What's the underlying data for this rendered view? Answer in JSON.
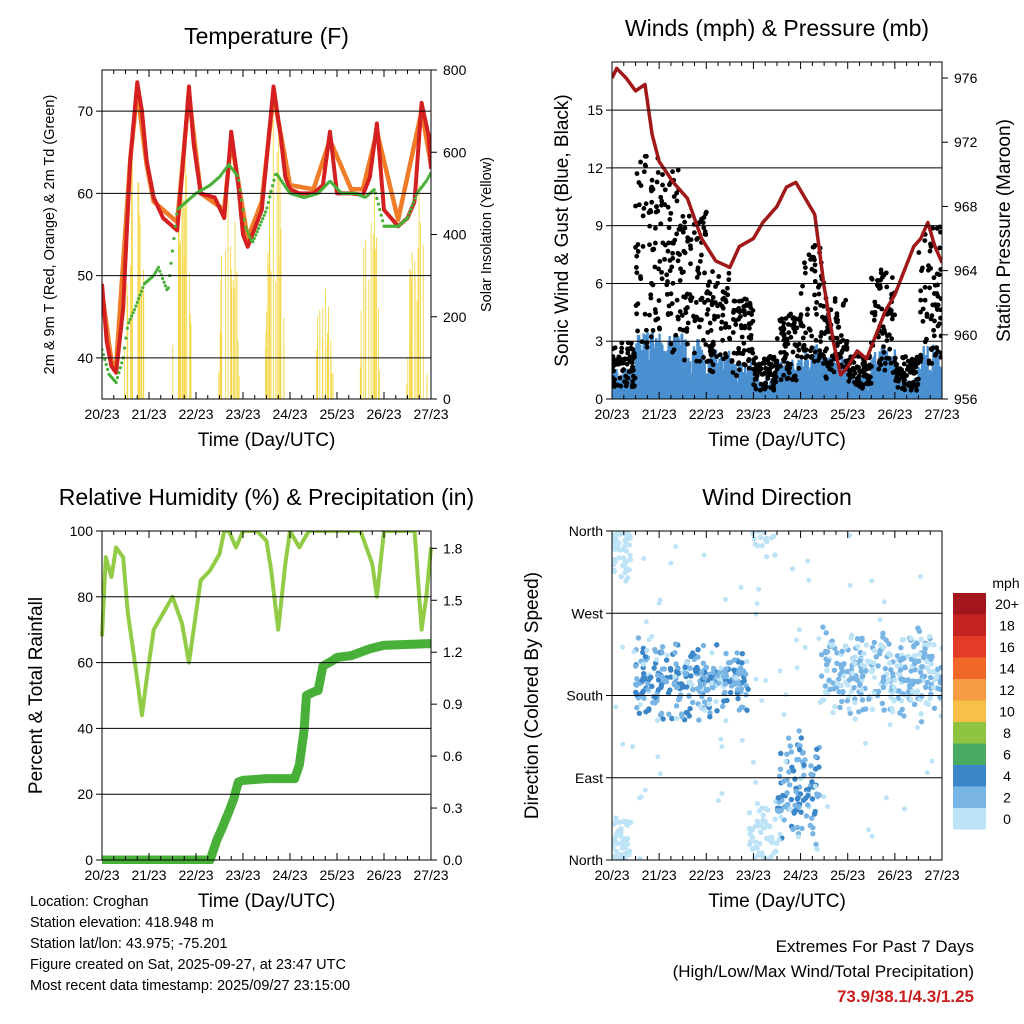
{
  "chart_data": [
    {
      "type": "line",
      "id": "temperature",
      "title": "Temperature (F)",
      "xlabel": "Time (Day/UTC)",
      "ylabel": "2m & 9m T (Red, Orange) & 2m Td (Green)",
      "ylabel_right": "Solar Insolation (Yellow)",
      "x_ticks": [
        "20/23",
        "21/23",
        "22/23",
        "23/23",
        "24/23",
        "25/23",
        "26/23",
        "27/23"
      ],
      "xlim": [
        0,
        7
      ],
      "ylim": [
        35,
        75
      ],
      "y_ticks": [
        40,
        50,
        60,
        70
      ],
      "ylim_right": [
        0,
        800
      ],
      "y_ticks_right": [
        0,
        200,
        400,
        600,
        800
      ],
      "gridlines_y": [
        40,
        50,
        60,
        70
      ],
      "series": [
        {
          "name": "2m T",
          "color": "#d42020",
          "x": [
            0,
            0.1,
            0.2,
            0.3,
            0.45,
            0.6,
            0.75,
            0.85,
            0.95,
            1.1,
            1.3,
            1.6,
            1.7,
            1.85,
            1.95,
            2.1,
            2.4,
            2.6,
            2.75,
            2.9,
            3.0,
            3.1,
            3.4,
            3.65,
            3.8,
            3.9,
            4.0,
            4.2,
            4.5,
            4.7,
            4.85,
            5.0,
            5.3,
            5.55,
            5.7,
            5.85,
            6.0,
            6.3,
            6.5,
            6.65,
            6.8,
            6.95,
            7.0
          ],
          "values": [
            49,
            42,
            39,
            38.2,
            46,
            64,
            73.5,
            70,
            64,
            59.5,
            57,
            55.5,
            62,
            73,
            66,
            60,
            59.5,
            57,
            67.5,
            61,
            55,
            53.5,
            58,
            73,
            67,
            62,
            60.5,
            60,
            60,
            61,
            67.5,
            60,
            60,
            59.8,
            62,
            68.5,
            58,
            56,
            57,
            59,
            71,
            67,
            63
          ]
        },
        {
          "name": "9m T",
          "color": "#f07c28",
          "x": [
            0,
            0.2,
            0.3,
            0.6,
            0.75,
            0.95,
            1.1,
            1.6,
            1.85,
            2.1,
            2.6,
            2.75,
            3.1,
            3.4,
            3.65,
            4.0,
            4.5,
            4.85,
            5.3,
            5.55,
            5.85,
            6.3,
            6.8,
            7.0
          ],
          "values": [
            48,
            39.6,
            39,
            64,
            72.5,
            63.5,
            59,
            56.5,
            72,
            60,
            58,
            66.5,
            54.5,
            59,
            72,
            61,
            60.5,
            66.5,
            60.5,
            60.5,
            67.5,
            56.8,
            70,
            63.5
          ]
        },
        {
          "name": "2m Td",
          "color": "#48b038",
          "x": [
            0,
            0.15,
            0.3,
            0.45,
            0.55,
            0.7,
            0.9,
            1.1,
            1.2,
            1.4,
            1.6,
            1.8,
            2.0,
            2.3,
            2.5,
            2.7,
            2.9,
            3.05,
            3.2,
            3.5,
            3.7,
            4.0,
            4.3,
            4.6,
            4.85,
            5.1,
            5.4,
            5.6,
            5.8,
            6.0,
            6.3,
            6.5,
            6.7,
            6.9,
            7.0
          ],
          "values": [
            41,
            38,
            37,
            40,
            44,
            46,
            49,
            50,
            51,
            48,
            58,
            59,
            60,
            61,
            62,
            63.5,
            62,
            56,
            54,
            58,
            62.5,
            60,
            59.5,
            60,
            61.5,
            60,
            60,
            59.5,
            60.5,
            56,
            56,
            57,
            60,
            61.5,
            62.5
          ]
        },
        {
          "name": "Solar Insolation",
          "color": "#f5d84a",
          "axis": "right",
          "peaks": [
            {
              "day": 0.7,
              "value": 780
            },
            {
              "day": 1.7,
              "value": 720
            },
            {
              "day": 2.7,
              "value": 660
            },
            {
              "day": 3.7,
              "value": 770
            },
            {
              "day": 4.7,
              "value": 310
            },
            {
              "day": 5.7,
              "value": 640
            },
            {
              "day": 6.7,
              "value": 560
            }
          ]
        }
      ]
    },
    {
      "type": "scatter",
      "id": "winds",
      "title": "Winds (mph) & Pressure (mb)",
      "xlabel": "Time (Day/UTC)",
      "ylabel": "Sonic Wind & Gust (Blue, Black)",
      "ylabel_right": "Station Pressure (Maroon)",
      "x_ticks": [
        "20/23",
        "21/23",
        "22/23",
        "23/23",
        "24/23",
        "25/23",
        "26/23",
        "27/23"
      ],
      "xlim": [
        0,
        7
      ],
      "ylim": [
        0,
        17.5
      ],
      "y_ticks": [
        0,
        3,
        6,
        9,
        12,
        15
      ],
      "ylim_right": [
        956,
        977
      ],
      "y_ticks_right": [
        956,
        960,
        964,
        968,
        972,
        976
      ],
      "gridlines_y": [
        3,
        6,
        9,
        12,
        15
      ],
      "series": [
        {
          "name": "Gust",
          "color": "#000000",
          "x_centers": [
            0.25,
            0.75,
            1.25,
            1.75,
            2.25,
            2.75,
            3.25,
            3.75,
            4.25,
            4.75,
            5.25,
            5.75,
            6.25,
            6.75
          ],
          "values": [
            2.0,
            8.5,
            8.0,
            6.5,
            4.5,
            3.5,
            1.5,
            3.0,
            5.5,
            3.5,
            1.5,
            4.5,
            1.5,
            6.0
          ]
        },
        {
          "name": "Sonic Wind",
          "color": "#4a90d0",
          "x_centers": [
            0.25,
            0.75,
            1.25,
            1.75,
            2.25,
            2.75,
            3.25,
            3.75,
            4.25,
            4.75,
            5.25,
            5.75,
            6.25,
            6.75
          ],
          "values": [
            1.0,
            2.3,
            2.2,
            2.0,
            1.6,
            1.3,
            0.8,
            1.3,
            1.8,
            1.4,
            0.8,
            1.7,
            0.7,
            1.8
          ]
        },
        {
          "name": "Station Pressure",
          "color": "#a01818",
          "axis": "right",
          "x": [
            0,
            0.1,
            0.3,
            0.5,
            0.7,
            0.85,
            1.0,
            1.3,
            1.6,
            1.9,
            2.2,
            2.5,
            2.7,
            3.0,
            3.2,
            3.5,
            3.7,
            3.9,
            4.1,
            4.3,
            4.5,
            4.7,
            4.85,
            5.0,
            5.2,
            5.4,
            5.6,
            5.8,
            6.0,
            6.2,
            6.4,
            6.55,
            6.7,
            6.85,
            7.0
          ],
          "values": [
            976,
            976.6,
            976.0,
            975.2,
            975.6,
            972.5,
            970.8,
            969.5,
            968.5,
            966.0,
            964.6,
            964.2,
            965.5,
            966.0,
            967.0,
            968.0,
            969.2,
            969.5,
            968.5,
            967.5,
            963.0,
            959.5,
            957.5,
            958.0,
            959.0,
            958.5,
            960.0,
            961.5,
            962.5,
            964.0,
            965.5,
            966.0,
            967.0,
            965.5,
            964.5
          ]
        }
      ]
    },
    {
      "type": "line",
      "id": "humidity",
      "title": "Relative Humidity (%) & Precipitation (in)",
      "xlabel": "Time (Day/UTC)",
      "ylabel": "Percent & Total Rainfall",
      "x_ticks": [
        "20/23",
        "21/23",
        "22/23",
        "23/23",
        "24/23",
        "25/23",
        "26/23",
        "27/23"
      ],
      "xlim": [
        0,
        7
      ],
      "ylim": [
        0,
        100
      ],
      "y_ticks": [
        0,
        20,
        40,
        60,
        80,
        100
      ],
      "ylim_right": [
        0,
        1.9
      ],
      "y_ticks_right": [
        "0.0",
        "0.3",
        "0.6",
        "0.9",
        "1.2",
        "1.5",
        "1.8"
      ],
      "gridlines_y": [
        20,
        40,
        60,
        80,
        100
      ],
      "series": [
        {
          "name": "Relative Humidity",
          "color": "#92cc46",
          "x": [
            0,
            0.08,
            0.2,
            0.3,
            0.45,
            0.55,
            0.7,
            0.85,
            0.95,
            1.1,
            1.3,
            1.5,
            1.7,
            1.85,
            1.95,
            2.1,
            2.3,
            2.5,
            2.6,
            2.7,
            2.85,
            3.0,
            3.3,
            3.5,
            3.6,
            3.75,
            3.9,
            4.0,
            4.2,
            4.4,
            4.6,
            5.0,
            5.5,
            5.75,
            5.85,
            6.0,
            6.4,
            6.65,
            6.8,
            6.9,
            7.0
          ],
          "values": [
            68,
            92,
            86,
            95,
            92,
            75,
            60,
            44,
            55,
            70,
            75,
            80,
            72,
            60,
            70,
            85,
            88,
            93,
            100,
            100,
            95,
            100,
            100,
            97,
            88,
            70,
            90,
            100,
            95,
            100,
            100,
            100,
            100,
            90,
            80,
            100,
            100,
            100,
            70,
            80,
            95
          ]
        },
        {
          "name": "Total Precipitation",
          "color": "#48b038",
          "axis": "right",
          "x": [
            0,
            2.3,
            2.45,
            2.55,
            2.7,
            2.8,
            2.9,
            3.0,
            3.5,
            4.0,
            4.1,
            4.2,
            4.3,
            4.35,
            4.5,
            4.6,
            4.7,
            4.9,
            5.0,
            5.3,
            5.5,
            5.7,
            6.0,
            7.0
          ],
          "values": [
            0,
            0,
            0.12,
            0.18,
            0.28,
            0.35,
            0.45,
            0.46,
            0.47,
            0.47,
            0.47,
            0.55,
            0.75,
            0.95,
            0.97,
            0.98,
            1.12,
            1.15,
            1.17,
            1.18,
            1.2,
            1.22,
            1.24,
            1.25
          ]
        }
      ]
    },
    {
      "type": "scatter",
      "id": "wind-direction",
      "title": "Wind Direction",
      "xlabel": "Time (Day/UTC)",
      "ylabel": "Direction (Colored By Speed)",
      "x_ticks": [
        "20/23",
        "21/23",
        "22/23",
        "23/23",
        "24/23",
        "25/23",
        "26/23",
        "27/23"
      ],
      "xlim": [
        0,
        7
      ],
      "ylim": [
        0,
        360
      ],
      "y_tick_labels": [
        "North",
        "East",
        "South",
        "West",
        "North"
      ],
      "y_tick_values": [
        0,
        90,
        180,
        270,
        360
      ],
      "gridlines_y": [
        90,
        180,
        270
      ],
      "clusters": [
        {
          "day_from": 0.0,
          "day_to": 0.4,
          "direction": 340,
          "spread": 30,
          "speed": 0.5
        },
        {
          "day_from": 0.0,
          "day_to": 0.4,
          "direction": 20,
          "spread": 30,
          "speed": 0.5
        },
        {
          "day_from": 0.5,
          "day_to": 2.9,
          "direction": 195,
          "spread": 35,
          "speed": 3
        },
        {
          "day_from": 2.9,
          "day_to": 3.5,
          "direction": 20,
          "spread": 35,
          "speed": 0.5
        },
        {
          "day_from": 3.5,
          "day_to": 4.4,
          "direction": 80,
          "spread": 50,
          "speed": 3
        },
        {
          "day_from": 4.4,
          "day_to": 7.0,
          "direction": 205,
          "spread": 40,
          "speed": 1.5
        }
      ],
      "colorbar": {
        "title": "mph",
        "labels": [
          "20+",
          "18",
          "16",
          "14",
          "12",
          "10",
          "8",
          "6",
          "4",
          "2",
          "0"
        ],
        "colors": [
          "#a3161b",
          "#c42420",
          "#e23b26",
          "#f0672a",
          "#f69c43",
          "#f6c049",
          "#8ec441",
          "#4aaa62",
          "#3a86c8",
          "#78b4e4",
          "#bde3f6"
        ]
      }
    }
  ],
  "station": {
    "location": "Location: Croghan",
    "elevation": "Station elevation: 418.948 m",
    "latlon": "Station lat/lon: 43.975; -75.201",
    "created": "Figure created on Sat, 2025-09-27, at 23:47 UTC",
    "recent": "Most recent data timestamp: 2025/09/27 23:15:00"
  },
  "extremes": {
    "heading": "Extremes For Past 7 Days",
    "subheading": "(High/Low/Max Wind/Total Precipitation)",
    "values": "73.9/38.1/4.3/1.25"
  }
}
